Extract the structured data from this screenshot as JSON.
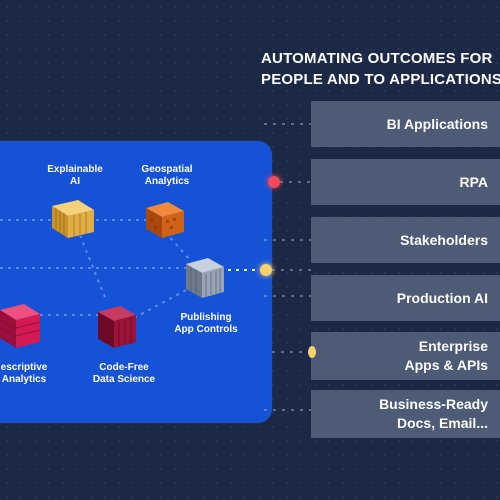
{
  "heading": {
    "line1": "AUTOMATING OUTCOMES FOR",
    "line2": "PEOPLE AND TO APPLICATIONS"
  },
  "nodes": {
    "explainable_ai": {
      "line1": "Explainable",
      "line2": "AI",
      "color": "#e8b94e"
    },
    "geospatial": {
      "line1": "Geospatial",
      "line2": "Analytics",
      "color": "#d8661c"
    },
    "publishing": {
      "line1": "Publishing",
      "line2": "App Controls",
      "color": "#8c98a8"
    },
    "prescriptive": {
      "line1": "escriptive",
      "line2": "Analytics",
      "color": "#d81b5c"
    },
    "code_free": {
      "line1": "Code-Free",
      "line2": "Data Science",
      "color": "#a0123a"
    }
  },
  "outcomes": [
    {
      "line1": "BI Applications",
      "line2": ""
    },
    {
      "line1": "RPA",
      "line2": ""
    },
    {
      "line1": "Stakeholders",
      "line2": ""
    },
    {
      "line1": "Production AI",
      "line2": ""
    },
    {
      "line1": "Enterprise",
      "line2": "Apps & APIs"
    },
    {
      "line1": "Business-Ready",
      "line2": "Docs, Email..."
    }
  ],
  "colors": {
    "background": "#1b2846",
    "panel": "#1552d6",
    "outcome_box": "#4d5b76",
    "pulse_red": "#f04a5a",
    "pulse_yellow": "#f7d26a"
  }
}
